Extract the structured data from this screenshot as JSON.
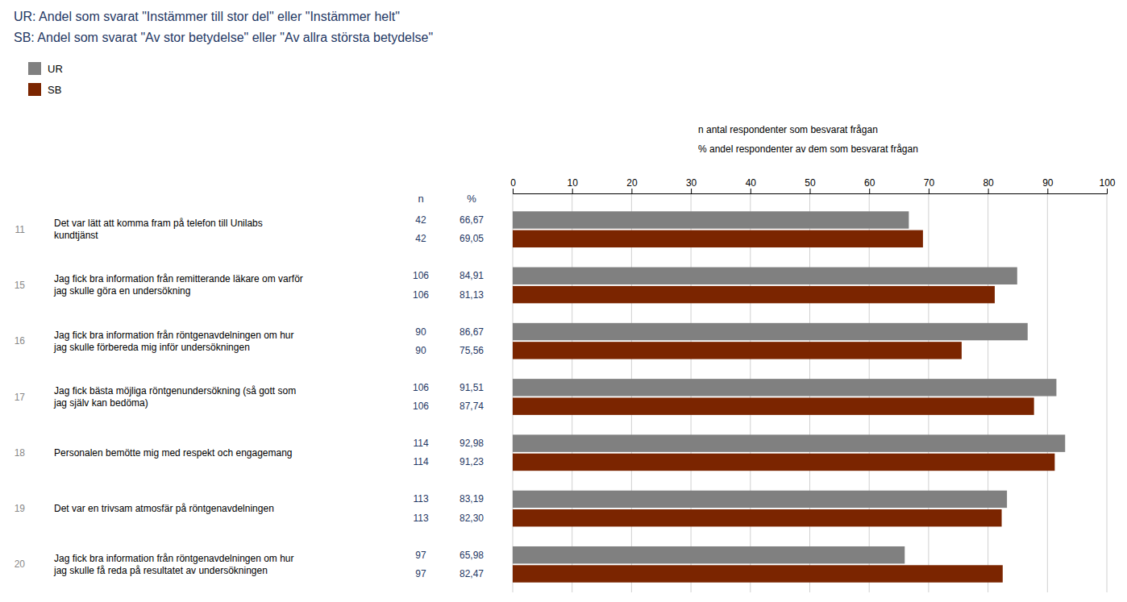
{
  "chart_data": {
    "type": "bar",
    "orientation": "horizontal",
    "title": "UR: Andel som svarat \"Instämmer till stor del\" eller \"Instämmer helt\"",
    "subtitle": "SB: Andel som svarat \"Av stor betydelse\" eller \"Av allra största betydelse\"",
    "annotations": [
      "n  antal respondenter som besvarat frågan",
      "%  andel respondenter av dem som besvarat frågan"
    ],
    "column_headers": [
      "n",
      "%"
    ],
    "category_ids": [
      "11",
      "15",
      "16",
      "17",
      "18",
      "19",
      "20"
    ],
    "categories": [
      "Det var lätt att komma fram på telefon till Unilabs\nkundtjänst",
      "Jag fick bra information från remitterande läkare om varför\njag skulle göra en undersökning",
      "Jag fick bra information från röntgenavdelningen om hur\njag skulle förbereda mig inför undersökningen",
      "Jag fick bästa möjliga röntgenundersökning (så gott som\njag själv kan bedöma)",
      "Personalen bemötte mig med respekt och engagemang",
      "Det var en trivsam atmosfär på röntgenavdelningen",
      "Jag fick bra information från röntgenavdelningen om hur\njag skulle få reda på resultatet av undersökningen"
    ],
    "series": [
      {
        "name": "UR",
        "color": "#808080",
        "values": [
          66.67,
          84.91,
          86.67,
          91.51,
          92.98,
          83.19,
          65.98
        ],
        "value_labels": [
          "66,67",
          "84,91",
          "86,67",
          "91,51",
          "92,98",
          "83,19",
          "65,98"
        ],
        "n": [
          42,
          106,
          90,
          106,
          114,
          113,
          97
        ]
      },
      {
        "name": "SB",
        "color": "#7B2500",
        "values": [
          69.05,
          81.13,
          75.56,
          87.74,
          91.23,
          82.3,
          82.47
        ],
        "value_labels": [
          "69,05",
          "81,13",
          "75,56",
          "87,74",
          "91,23",
          "82,30",
          "82,47"
        ],
        "n": [
          42,
          106,
          90,
          106,
          114,
          113,
          97
        ]
      }
    ],
    "xlim": [
      0,
      100
    ],
    "xticks": [
      0,
      10,
      20,
      30,
      40,
      50,
      60,
      70,
      80,
      90,
      100
    ],
    "grid": true,
    "legend": "upper left",
    "data_labels": true,
    "tick_labels": "x"
  }
}
